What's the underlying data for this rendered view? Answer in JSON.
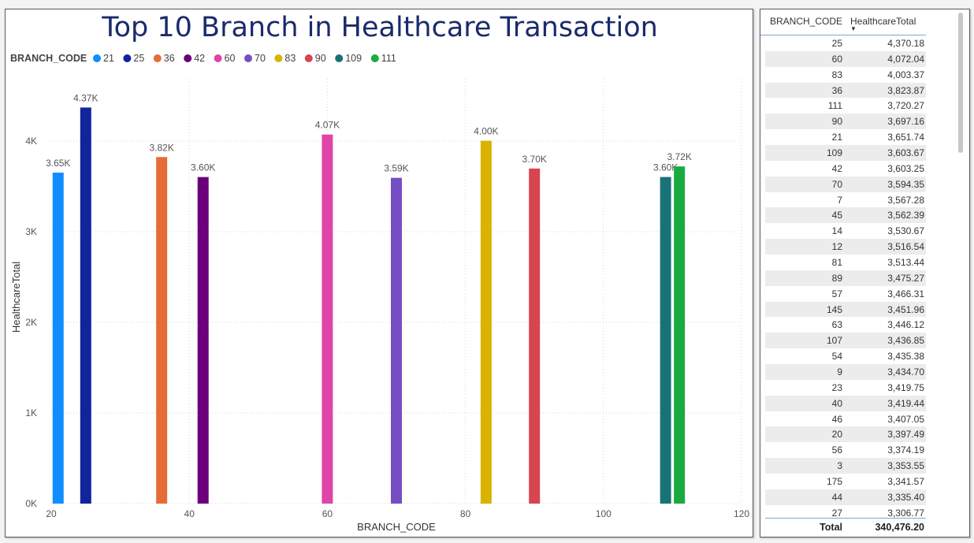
{
  "chart_data": {
    "type": "bar",
    "title": "Top 10 Branch in Healthcare Transaction",
    "xlabel": "BRANCH_CODE",
    "ylabel": "HealthcareTotal",
    "xlim": [
      20,
      120
    ],
    "ylim": [
      0,
      4600
    ],
    "x_ticks": [
      {
        "v": 20,
        "label": "20"
      },
      {
        "v": 40,
        "label": "40"
      },
      {
        "v": 60,
        "label": "60"
      },
      {
        "v": 80,
        "label": "80"
      },
      {
        "v": 100,
        "label": "100"
      },
      {
        "v": 120,
        "label": "120"
      }
    ],
    "y_ticks": [
      {
        "v": 0,
        "label": "0K"
      },
      {
        "v": 1000,
        "label": "1K"
      },
      {
        "v": 2000,
        "label": "2K"
      },
      {
        "v": 3000,
        "label": "3K"
      },
      {
        "v": 4000,
        "label": "4K"
      }
    ],
    "grid": true,
    "legend": {
      "title": "BRANCH_CODE",
      "placement": "top-left"
    },
    "series": [
      {
        "name": "21",
        "x": 21,
        "value": 3651.74,
        "label": "3.65K",
        "color": "#118DFF"
      },
      {
        "name": "25",
        "x": 25,
        "value": 4370.18,
        "label": "4.37K",
        "color": "#12239E"
      },
      {
        "name": "36",
        "x": 36,
        "value": 3823.87,
        "label": "3.82K",
        "color": "#E66C37"
      },
      {
        "name": "42",
        "x": 42,
        "value": 3603.25,
        "label": "3.60K",
        "color": "#6B007B"
      },
      {
        "name": "60",
        "x": 60,
        "value": 4072.04,
        "label": "4.07K",
        "color": "#E044A7"
      },
      {
        "name": "70",
        "x": 70,
        "value": 3594.35,
        "label": "3.59K",
        "color": "#744EC2"
      },
      {
        "name": "83",
        "x": 83,
        "value": 4003.37,
        "label": "4.00K",
        "color": "#D9B300"
      },
      {
        "name": "90",
        "x": 90,
        "value": 3697.16,
        "label": "3.70K",
        "color": "#D64550"
      },
      {
        "name": "109",
        "x": 109,
        "value": 3603.67,
        "label": "3.60K",
        "color": "#197278"
      },
      {
        "name": "111",
        "x": 111,
        "value": 3720.27,
        "label": "3.72K",
        "color": "#1AAB40"
      }
    ]
  },
  "table": {
    "col1": "BRANCH_CODE",
    "col2": "HealthcareTotal",
    "rows": [
      [
        "25",
        "4,370.18"
      ],
      [
        "60",
        "4,072.04"
      ],
      [
        "83",
        "4,003.37"
      ],
      [
        "36",
        "3,823.87"
      ],
      [
        "111",
        "3,720.27"
      ],
      [
        "90",
        "3,697.16"
      ],
      [
        "21",
        "3,651.74"
      ],
      [
        "109",
        "3,603.67"
      ],
      [
        "42",
        "3,603.25"
      ],
      [
        "70",
        "3,594.35"
      ],
      [
        "7",
        "3,567.28"
      ],
      [
        "45",
        "3,562.39"
      ],
      [
        "14",
        "3,530.67"
      ],
      [
        "12",
        "3,516.54"
      ],
      [
        "81",
        "3,513.44"
      ],
      [
        "89",
        "3,475.27"
      ],
      [
        "57",
        "3,466.31"
      ],
      [
        "145",
        "3,451.96"
      ],
      [
        "63",
        "3,446.12"
      ],
      [
        "107",
        "3,436.85"
      ],
      [
        "54",
        "3,435.38"
      ],
      [
        "9",
        "3,434.70"
      ],
      [
        "23",
        "3,419.75"
      ],
      [
        "40",
        "3,419.44"
      ],
      [
        "46",
        "3,407.05"
      ],
      [
        "20",
        "3,397.49"
      ],
      [
        "56",
        "3,374.19"
      ],
      [
        "3",
        "3,353.55"
      ],
      [
        "175",
        "3,341.57"
      ],
      [
        "44",
        "3,335.40"
      ],
      [
        "27",
        "3,306.77"
      ]
    ],
    "total_label": "Total",
    "total_value": "340,476.20",
    "sort_icon": "sort-desc-icon"
  }
}
